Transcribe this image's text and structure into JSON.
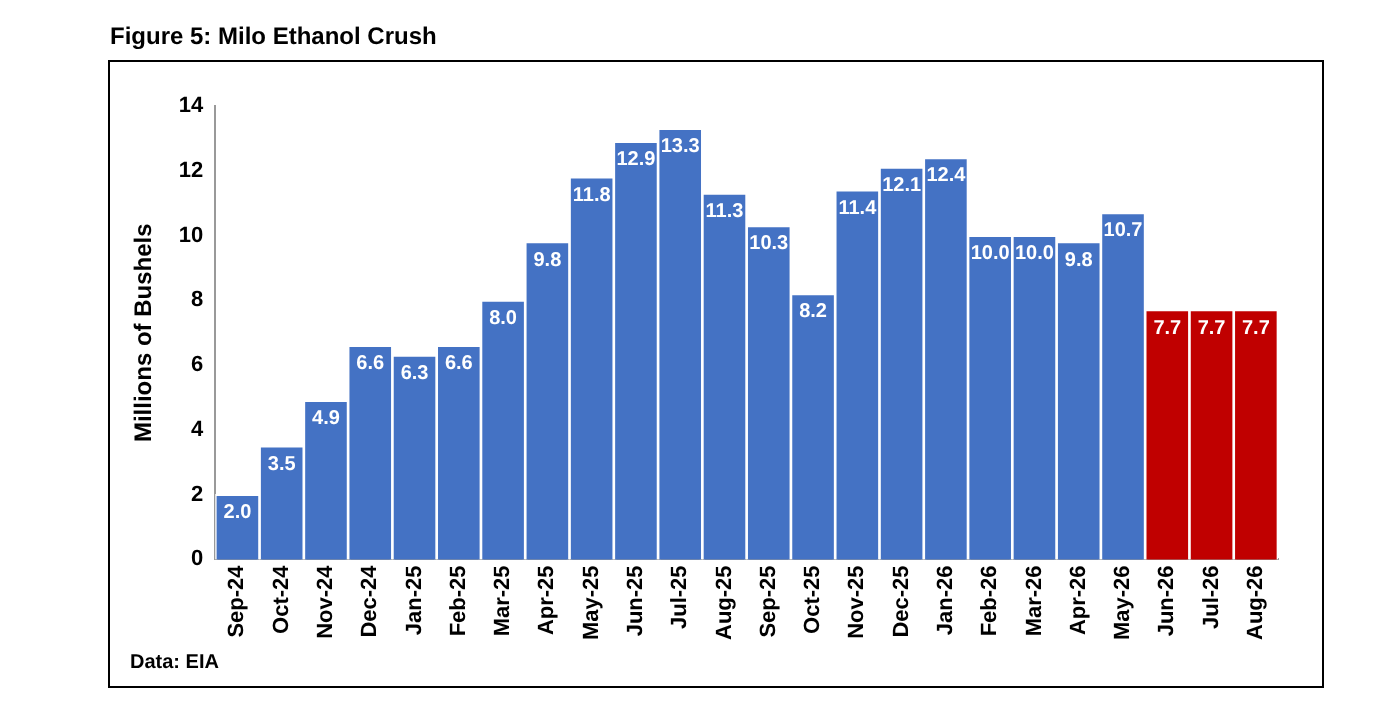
{
  "chart_data": {
    "type": "bar",
    "title": "Figure 5: Milo Ethanol Crush",
    "ylabel": "Millions of Bushels",
    "annotations": [
      "Data: EIA"
    ],
    "categories": [
      "Sep-24",
      "Oct-24",
      "Nov-24",
      "Dec-24",
      "Jan-25",
      "Feb-25",
      "Mar-25",
      "Apr-25",
      "May-25",
      "Jun-25",
      "Jul-25",
      "Aug-25",
      "Sep-25",
      "Oct-25",
      "Nov-25",
      "Dec-25",
      "Jan-26",
      "Feb-26",
      "Mar-26",
      "Apr-26",
      "May-26",
      "Jun-26",
      "Jul-26",
      "Aug-26"
    ],
    "values": [
      2.0,
      3.5,
      4.9,
      6.6,
      6.3,
      6.6,
      8.0,
      9.8,
      11.8,
      12.9,
      13.3,
      11.3,
      10.3,
      8.2,
      11.4,
      12.1,
      12.4,
      10.0,
      10.0,
      9.8,
      10.7,
      7.7,
      7.7,
      7.7
    ],
    "value_labels": [
      "2.0",
      "3.5",
      "4.9",
      "6.6",
      "6.3",
      "6.6",
      "8.0",
      "9.8",
      "11.8",
      "12.9",
      "13.3",
      "11.3",
      "10.3",
      "8.2",
      "11.4",
      "12.1",
      "12.4",
      "10.0",
      "10.0",
      "9.8",
      "10.7",
      "7.7",
      "7.7",
      "7.7"
    ],
    "colors": [
      "#4472c4",
      "#4472c4",
      "#4472c4",
      "#4472c4",
      "#4472c4",
      "#4472c4",
      "#4472c4",
      "#4472c4",
      "#4472c4",
      "#4472c4",
      "#4472c4",
      "#4472c4",
      "#4472c4",
      "#4472c4",
      "#4472c4",
      "#4472c4",
      "#4472c4",
      "#4472c4",
      "#4472c4",
      "#4472c4",
      "#4472c4",
      "#c00000",
      "#c00000",
      "#c00000"
    ],
    "ylim": [
      0,
      14
    ],
    "yticks": [
      0,
      2,
      4,
      6,
      8,
      10,
      12,
      14
    ],
    "grid": false,
    "legend": false
  }
}
